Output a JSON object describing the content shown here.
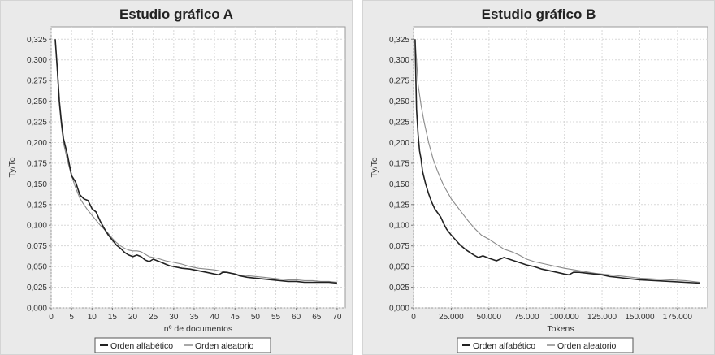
{
  "chart_data": [
    {
      "type": "line",
      "title": "Estudio gráfico A",
      "xlabel": "nº de documentos",
      "ylabel": "Ty/To",
      "xlim": [
        0,
        72
      ],
      "ylim": [
        0,
        0.34
      ],
      "x_ticks": [
        0,
        5,
        10,
        15,
        20,
        25,
        30,
        35,
        40,
        45,
        50,
        55,
        60,
        65,
        70
      ],
      "x_tick_labels": [
        "0",
        "5",
        "10",
        "15",
        "20",
        "25",
        "30",
        "35",
        "40",
        "45",
        "50",
        "55",
        "60",
        "65",
        "70"
      ],
      "y_ticks": [
        0,
        0.025,
        0.05,
        0.075,
        0.1,
        0.125,
        0.15,
        0.175,
        0.2,
        0.225,
        0.25,
        0.275,
        0.3,
        0.325
      ],
      "y_tick_labels": [
        "0,000",
        "0,025",
        "0,050",
        "0,075",
        "0,100",
        "0,125",
        "0,150",
        "0,175",
        "0,200",
        "0,225",
        "0,250",
        "0,275",
        "0,300",
        "0,325"
      ],
      "grid": true,
      "legend_position": "bottom",
      "series": [
        {
          "name": "Orden alfabético",
          "color": "#222222",
          "width": 1.6,
          "x": [
            1,
            1.5,
            2,
            2.5,
            3,
            3.5,
            4,
            5,
            6,
            7,
            8,
            9,
            10,
            11,
            12,
            13,
            14,
            15,
            16,
            17,
            18,
            19,
            20,
            21,
            22,
            23,
            24,
            25,
            26,
            27,
            28,
            29,
            30,
            32,
            34,
            36,
            38,
            40,
            41,
            42,
            43,
            44,
            45,
            46,
            48,
            50,
            52,
            54,
            56,
            58,
            60,
            62,
            64,
            66,
            68,
            70
          ],
          "y": [
            0.325,
            0.29,
            0.25,
            0.225,
            0.205,
            0.195,
            0.185,
            0.16,
            0.152,
            0.137,
            0.132,
            0.13,
            0.12,
            0.116,
            0.105,
            0.096,
            0.088,
            0.082,
            0.076,
            0.072,
            0.067,
            0.064,
            0.062,
            0.064,
            0.062,
            0.058,
            0.056,
            0.059,
            0.057,
            0.055,
            0.053,
            0.051,
            0.05,
            0.048,
            0.047,
            0.045,
            0.043,
            0.041,
            0.04,
            0.043,
            0.043,
            0.042,
            0.041,
            0.039,
            0.037,
            0.036,
            0.035,
            0.034,
            0.033,
            0.032,
            0.032,
            0.031,
            0.031,
            0.031,
            0.031,
            0.03
          ]
        },
        {
          "name": "Orden aleatorio",
          "color": "#8a8a8a",
          "width": 1.1,
          "x": [
            1,
            1.5,
            2,
            2.5,
            3,
            4,
            5,
            6,
            7,
            8,
            9,
            10,
            11,
            12,
            13,
            14,
            15,
            16,
            17,
            18,
            19,
            20,
            21,
            22,
            23,
            24,
            25,
            26,
            28,
            30,
            32,
            34,
            36,
            38,
            40,
            42,
            44,
            46,
            48,
            50,
            52,
            54,
            56,
            58,
            60,
            62,
            64,
            66,
            68,
            70
          ],
          "y": [
            0.325,
            0.285,
            0.245,
            0.22,
            0.2,
            0.178,
            0.16,
            0.145,
            0.133,
            0.125,
            0.118,
            0.112,
            0.106,
            0.1,
            0.095,
            0.09,
            0.084,
            0.079,
            0.075,
            0.072,
            0.07,
            0.069,
            0.069,
            0.068,
            0.065,
            0.062,
            0.061,
            0.06,
            0.057,
            0.055,
            0.053,
            0.05,
            0.048,
            0.047,
            0.046,
            0.044,
            0.042,
            0.04,
            0.039,
            0.038,
            0.037,
            0.036,
            0.035,
            0.034,
            0.034,
            0.033,
            0.033,
            0.032,
            0.032,
            0.031
          ]
        }
      ]
    },
    {
      "type": "line",
      "title": "Estudio gráfico B",
      "xlabel": "Tokens",
      "ylabel": "Ty/To",
      "xlim": [
        0,
        195000
      ],
      "ylim": [
        0,
        0.34
      ],
      "x_ticks": [
        0,
        25000,
        50000,
        75000,
        100000,
        125000,
        150000,
        175000
      ],
      "x_tick_labels": [
        "0",
        "25.000",
        "50.000",
        "75.000",
        "100.000",
        "125.000",
        "150.000",
        "175.000"
      ],
      "y_ticks": [
        0,
        0.025,
        0.05,
        0.075,
        0.1,
        0.125,
        0.15,
        0.175,
        0.2,
        0.225,
        0.25,
        0.275,
        0.3,
        0.325
      ],
      "y_tick_labels": [
        "0,000",
        "0,025",
        "0,050",
        "0,075",
        "0,100",
        "0,125",
        "0,150",
        "0,175",
        "0,200",
        "0,225",
        "0,250",
        "0,275",
        "0,300",
        "0,325"
      ],
      "grid": true,
      "legend_position": "bottom",
      "series": [
        {
          "name": "Orden alfabético",
          "color": "#222222",
          "width": 1.6,
          "x": [
            1000,
            1500,
            2000,
            3000,
            4000,
            5000,
            6000,
            8000,
            10000,
            12000,
            14000,
            16000,
            18000,
            20000,
            22000,
            25000,
            28000,
            31000,
            35000,
            40000,
            43000,
            46000,
            50000,
            55000,
            60000,
            65000,
            70000,
            75000,
            80000,
            85000,
            90000,
            95000,
            100000,
            103000,
            106000,
            110000,
            115000,
            120000,
            125000,
            130000,
            140000,
            150000,
            160000,
            170000,
            180000,
            190000
          ],
          "y": [
            0.325,
            0.28,
            0.24,
            0.21,
            0.19,
            0.18,
            0.165,
            0.15,
            0.138,
            0.128,
            0.12,
            0.115,
            0.11,
            0.102,
            0.095,
            0.088,
            0.082,
            0.076,
            0.07,
            0.064,
            0.061,
            0.063,
            0.06,
            0.057,
            0.061,
            0.058,
            0.055,
            0.052,
            0.05,
            0.047,
            0.045,
            0.043,
            0.041,
            0.04,
            0.043,
            0.043,
            0.042,
            0.041,
            0.04,
            0.038,
            0.036,
            0.034,
            0.033,
            0.032,
            0.031,
            0.03
          ]
        },
        {
          "name": "Orden aleatorio",
          "color": "#8a8a8a",
          "width": 1.1,
          "x": [
            1000,
            2000,
            3000,
            5000,
            7000,
            10000,
            13000,
            16000,
            20000,
            25000,
            30000,
            35000,
            40000,
            45000,
            50000,
            55000,
            60000,
            65000,
            70000,
            75000,
            80000,
            90000,
            100000,
            110000,
            120000,
            130000,
            140000,
            150000,
            160000,
            170000,
            180000,
            190000
          ],
          "y": [
            0.325,
            0.3,
            0.27,
            0.245,
            0.225,
            0.2,
            0.18,
            0.165,
            0.148,
            0.132,
            0.12,
            0.108,
            0.097,
            0.088,
            0.083,
            0.077,
            0.071,
            0.068,
            0.064,
            0.059,
            0.056,
            0.052,
            0.048,
            0.045,
            0.042,
            0.04,
            0.038,
            0.036,
            0.035,
            0.034,
            0.033,
            0.031
          ]
        }
      ]
    }
  ]
}
